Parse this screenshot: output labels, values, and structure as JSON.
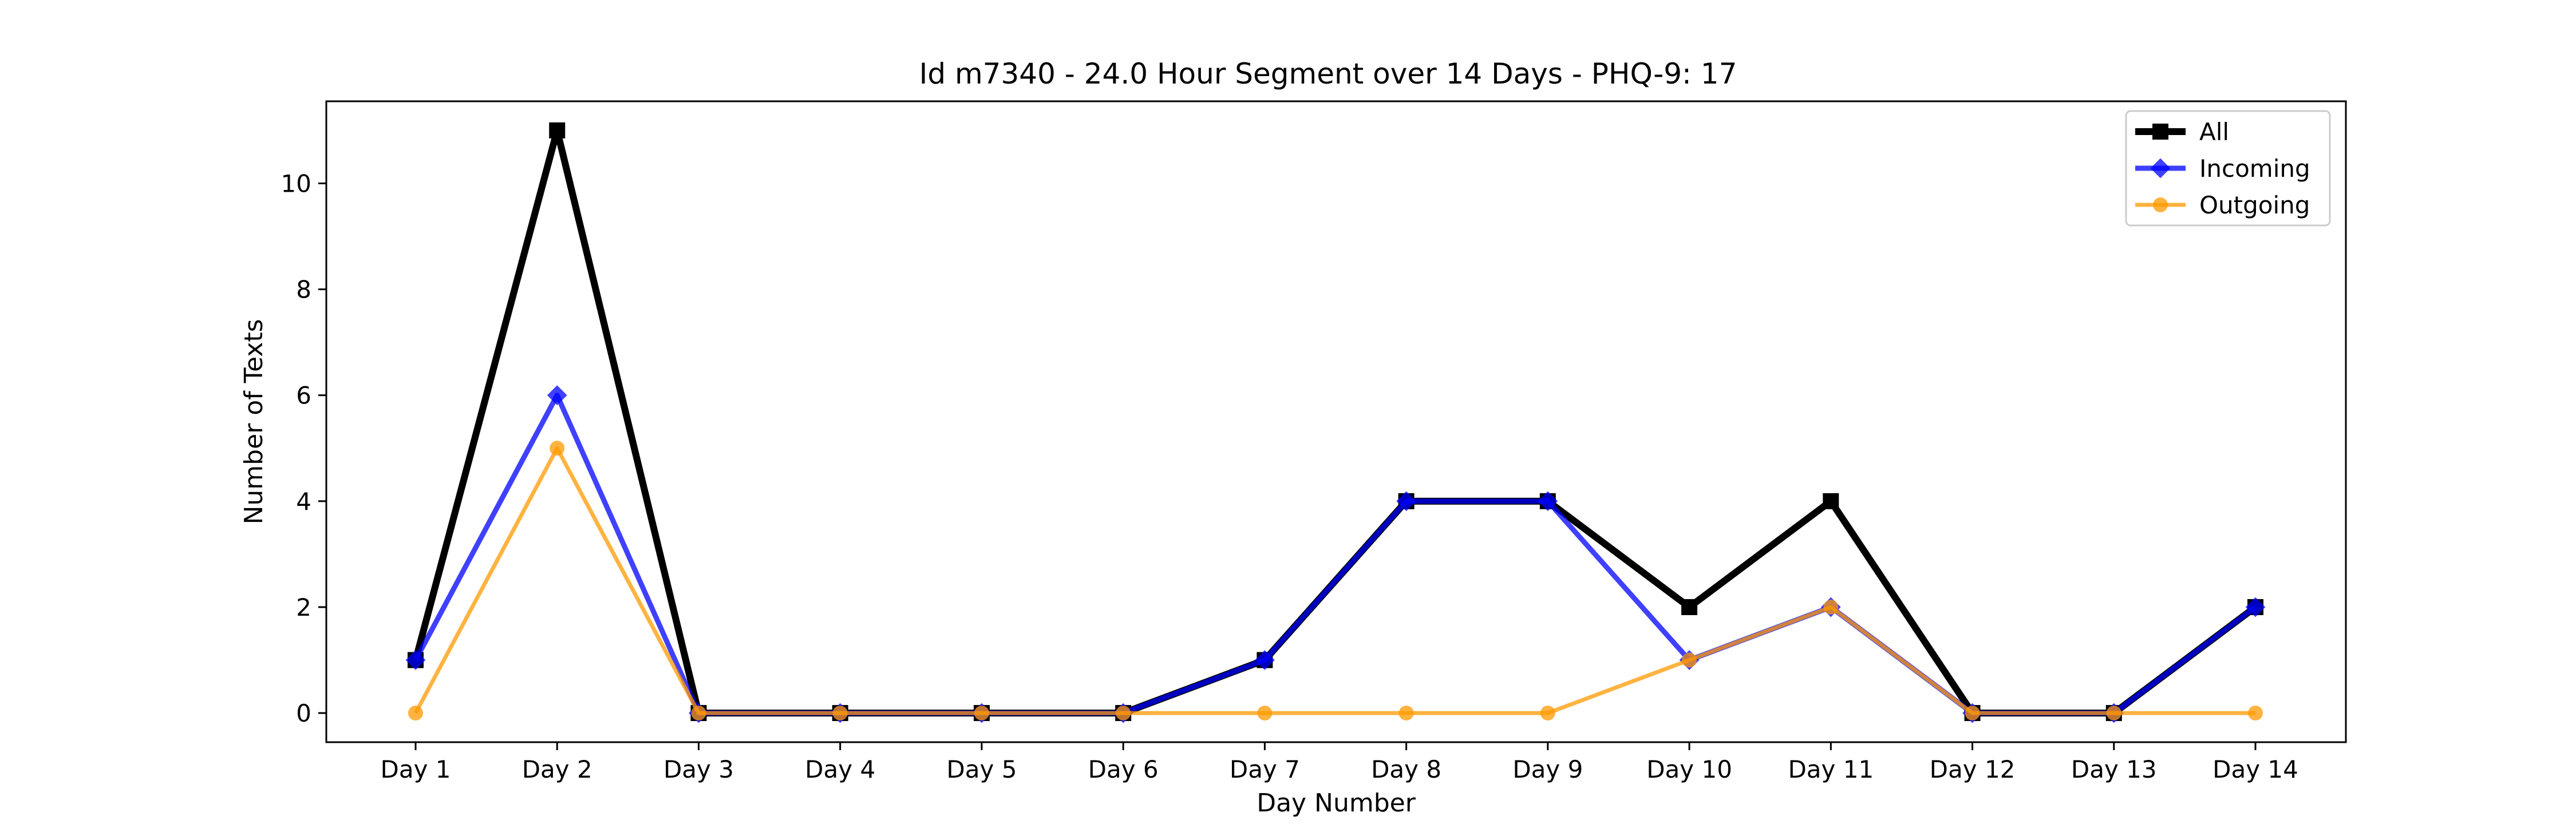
{
  "chart_data": {
    "type": "line",
    "title": "Id m7340 - 24.0 Hour Segment over 14 Days - PHQ-9: 17",
    "xlabel": "Day Number",
    "ylabel": "Number of Texts",
    "categories": [
      "Day 1",
      "Day 2",
      "Day 3",
      "Day 4",
      "Day 5",
      "Day 6",
      "Day 7",
      "Day 8",
      "Day 9",
      "Day 10",
      "Day 11",
      "Day 12",
      "Day 13",
      "Day 14"
    ],
    "ylim": [
      -0.55,
      11.55
    ],
    "yticks": [
      0,
      2,
      4,
      6,
      8,
      10
    ],
    "grid": false,
    "legend_position": "top-right",
    "series": [
      {
        "name": "All",
        "color": "#000000",
        "marker": "square",
        "values": [
          1,
          11,
          0,
          0,
          0,
          0,
          1,
          4,
          4,
          2,
          4,
          0,
          0,
          2
        ]
      },
      {
        "name": "Incoming",
        "color": "#0000ff",
        "marker": "diamond",
        "values": [
          1,
          6,
          0,
          0,
          0,
          0,
          1,
          4,
          4,
          1,
          2,
          0,
          0,
          2
        ]
      },
      {
        "name": "Outgoing",
        "color": "#ff9900",
        "marker": "circle",
        "values": [
          0,
          5,
          0,
          0,
          0,
          0,
          0,
          0,
          0,
          1,
          2,
          0,
          0,
          0
        ]
      }
    ]
  }
}
